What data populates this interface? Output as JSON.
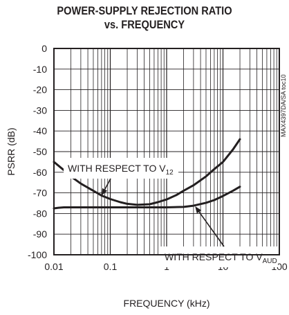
{
  "chart_data": {
    "type": "line",
    "title_lines": [
      "POWER-SUPPLY REJECTION RATIO",
      "vs. FREQUENCY"
    ],
    "xlabel": "FREQUENCY (kHz)",
    "ylabel": "PSRR (dB)",
    "xscale": "log",
    "xlim": [
      0.01,
      100
    ],
    "ylim": [
      -100,
      0
    ],
    "grid": true,
    "x_ticks": [
      {
        "value": 0.01,
        "label": "0.01"
      },
      {
        "value": 0.1,
        "label": "0.1"
      },
      {
        "value": 1,
        "label": "1"
      },
      {
        "value": 10,
        "label": "10"
      },
      {
        "value": 100,
        "label": "100"
      }
    ],
    "y_ticks": [
      {
        "value": 0,
        "label": "0"
      },
      {
        "value": -10,
        "label": "-10"
      },
      {
        "value": -20,
        "label": "-20"
      },
      {
        "value": -30,
        "label": "-30"
      },
      {
        "value": -40,
        "label": "-40"
      },
      {
        "value": -50,
        "label": "-50"
      },
      {
        "value": -60,
        "label": "-60"
      },
      {
        "value": -70,
        "label": "-70"
      },
      {
        "value": -80,
        "label": "-80"
      },
      {
        "value": -90,
        "label": "-90"
      },
      {
        "value": -100,
        "label": "-100"
      }
    ],
    "series": [
      {
        "name": "V12",
        "x": [
          0.01,
          0.015,
          0.02,
          0.03,
          0.05,
          0.07,
          0.1,
          0.15,
          0.2,
          0.3,
          0.5,
          0.7,
          1,
          1.5,
          2,
          3,
          5,
          7,
          10,
          15,
          20
        ],
        "y": [
          -55,
          -59,
          -62,
          -65.5,
          -69,
          -71.3,
          -73,
          -74.5,
          -75.3,
          -75.8,
          -75.5,
          -74.5,
          -73.2,
          -71,
          -69,
          -66.3,
          -62,
          -58.5,
          -55,
          -49,
          -44
        ]
      },
      {
        "name": "VAUD",
        "x": [
          0.01,
          0.012,
          0.015,
          0.02,
          0.05,
          0.1,
          0.2,
          0.5,
          1,
          2,
          3,
          5,
          7,
          10,
          15,
          20
        ],
        "y": [
          -77.5,
          -77.2,
          -77,
          -77,
          -77,
          -77,
          -77,
          -77,
          -77,
          -76.8,
          -76.2,
          -74.8,
          -73.5,
          -71.5,
          -69,
          -67
        ]
      }
    ],
    "annotations": [
      {
        "id": "v12",
        "text": "WITH RESPECT TO V",
        "sub": "12",
        "arrow_to": {
          "x": 0.07,
          "y": -71.3
        }
      },
      {
        "id": "vaud",
        "text": "WITH RESPECT TO V",
        "sub": "AUD",
        "arrow_to": {
          "x": 3.2,
          "y": -76.5
        }
      }
    ],
    "side_label": "MAX4397DA/SA toc10",
    "colors": {
      "line": "#231f20",
      "grid": "#231f20",
      "background": "#ffffff"
    }
  }
}
